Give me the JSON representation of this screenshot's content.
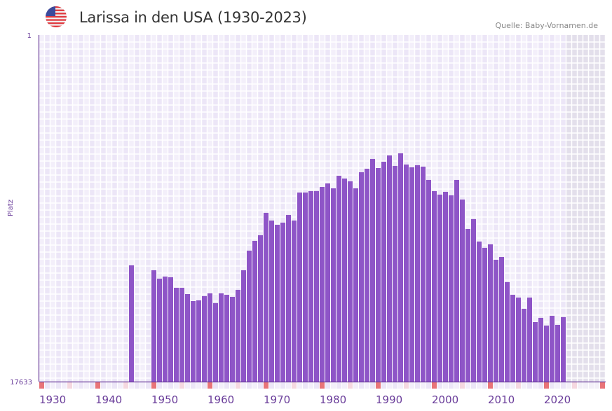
{
  "header": {
    "title": "Larissa in den USA (1930-2023)",
    "source": "Quelle: Baby-Vornamen.de",
    "flag_icon": "us-flag-icon"
  },
  "chart_data": {
    "type": "bar",
    "title": "Larissa in den USA (1930-2023)",
    "ylabel": "Platz",
    "xlabel": "",
    "y_inverted": true,
    "ylim": [
      1,
      17633
    ],
    "y_tick_labels": [
      "1",
      "17633"
    ],
    "x_range": [
      1930,
      2030
    ],
    "x_tick_labels": [
      "1930",
      "1940",
      "1950",
      "1960",
      "1970",
      "1980",
      "1990",
      "2000",
      "2010",
      "2020"
    ],
    "x_ticks": [
      1930,
      1940,
      1950,
      1960,
      1970,
      1980,
      1990,
      2000,
      2010,
      2020
    ],
    "future_shaded_from": 2024,
    "grid": true,
    "colors": {
      "bar": "#8e55c7",
      "axis": "#6a3d9a",
      "grid_a": "#f3effa",
      "grid_b": "#ece6f7",
      "future": "#e3dfeb",
      "decade_marker": "#e87478",
      "half_decade_marker": "#f5d8e0",
      "label": "#6a3d9a"
    },
    "x": [
      1946,
      1950,
      1951,
      1952,
      1953,
      1954,
      1955,
      1956,
      1957,
      1958,
      1959,
      1960,
      1961,
      1962,
      1963,
      1964,
      1965,
      1966,
      1967,
      1968,
      1969,
      1970,
      1971,
      1972,
      1973,
      1974,
      1975,
      1976,
      1977,
      1978,
      1979,
      1980,
      1981,
      1982,
      1983,
      1984,
      1985,
      1986,
      1987,
      1988,
      1989,
      1990,
      1991,
      1992,
      1993,
      1994,
      1995,
      1996,
      1997,
      1998,
      1999,
      2000,
      2001,
      2002,
      2003,
      2004,
      2005,
      2006,
      2007,
      2008,
      2009,
      2010,
      2011,
      2012,
      2013,
      2014,
      2015,
      2016,
      2017,
      2018,
      2019,
      2020,
      2021,
      2022,
      2023
    ],
    "values": [
      11719,
      11968,
      12396,
      12289,
      12325,
      12859,
      12859,
      13179,
      13536,
      13500,
      13286,
      13144,
      13642,
      13144,
      13215,
      13322,
      12966,
      11968,
      10971,
      10472,
      10187,
      9047,
      9439,
      9653,
      9546,
      9154,
      9439,
      8014,
      8014,
      7943,
      7943,
      7730,
      7551,
      7801,
      7160,
      7302,
      7445,
      7801,
      6982,
      6803,
      6305,
      6768,
      6447,
      6127,
      6661,
      6020,
      6590,
      6732,
      6625,
      6697,
      7373,
      7943,
      8121,
      7979,
      8157,
      7373,
      8371,
      9867,
      9368,
      10508,
      10828,
      10650,
      11434,
      11292,
      12574,
      13215,
      13358,
      13927,
      13358,
      14604,
      14390,
      14782,
      14284,
      14747,
      14355
    ]
  }
}
